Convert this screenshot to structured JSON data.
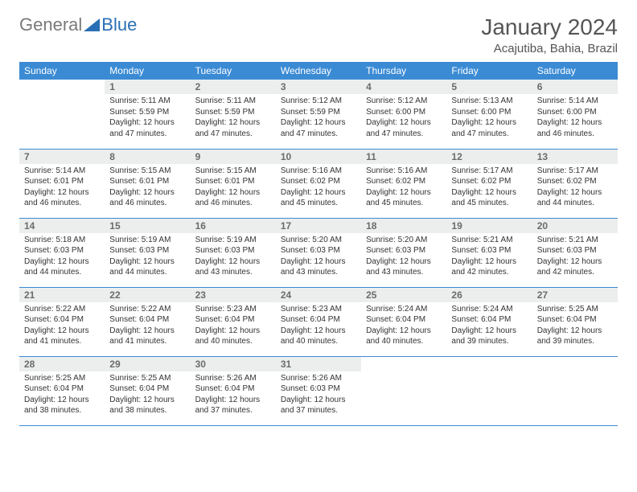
{
  "logo": {
    "gray": "General",
    "blue": "Blue"
  },
  "title": "January 2024",
  "location": "Acajutiba, Bahia, Brazil",
  "colors": {
    "header_bg": "#3b8bd4",
    "header_text": "#ffffff",
    "daynum_bg": "#eceeee",
    "daynum_text": "#6b6b6b",
    "row_border": "#3b8bd4",
    "body_text": "#333333",
    "logo_gray": "#7a7a7a",
    "logo_blue": "#2a6fb5"
  },
  "weekdays": [
    "Sunday",
    "Monday",
    "Tuesday",
    "Wednesday",
    "Thursday",
    "Friday",
    "Saturday"
  ],
  "grid": [
    [
      null,
      {
        "n": "1",
        "sr": "5:11 AM",
        "ss": "5:59 PM",
        "dl": "12 hours and 47 minutes."
      },
      {
        "n": "2",
        "sr": "5:11 AM",
        "ss": "5:59 PM",
        "dl": "12 hours and 47 minutes."
      },
      {
        "n": "3",
        "sr": "5:12 AM",
        "ss": "5:59 PM",
        "dl": "12 hours and 47 minutes."
      },
      {
        "n": "4",
        "sr": "5:12 AM",
        "ss": "6:00 PM",
        "dl": "12 hours and 47 minutes."
      },
      {
        "n": "5",
        "sr": "5:13 AM",
        "ss": "6:00 PM",
        "dl": "12 hours and 47 minutes."
      },
      {
        "n": "6",
        "sr": "5:14 AM",
        "ss": "6:00 PM",
        "dl": "12 hours and 46 minutes."
      }
    ],
    [
      {
        "n": "7",
        "sr": "5:14 AM",
        "ss": "6:01 PM",
        "dl": "12 hours and 46 minutes."
      },
      {
        "n": "8",
        "sr": "5:15 AM",
        "ss": "6:01 PM",
        "dl": "12 hours and 46 minutes."
      },
      {
        "n": "9",
        "sr": "5:15 AM",
        "ss": "6:01 PM",
        "dl": "12 hours and 46 minutes."
      },
      {
        "n": "10",
        "sr": "5:16 AM",
        "ss": "6:02 PM",
        "dl": "12 hours and 45 minutes."
      },
      {
        "n": "11",
        "sr": "5:16 AM",
        "ss": "6:02 PM",
        "dl": "12 hours and 45 minutes."
      },
      {
        "n": "12",
        "sr": "5:17 AM",
        "ss": "6:02 PM",
        "dl": "12 hours and 45 minutes."
      },
      {
        "n": "13",
        "sr": "5:17 AM",
        "ss": "6:02 PM",
        "dl": "12 hours and 44 minutes."
      }
    ],
    [
      {
        "n": "14",
        "sr": "5:18 AM",
        "ss": "6:03 PM",
        "dl": "12 hours and 44 minutes."
      },
      {
        "n": "15",
        "sr": "5:19 AM",
        "ss": "6:03 PM",
        "dl": "12 hours and 44 minutes."
      },
      {
        "n": "16",
        "sr": "5:19 AM",
        "ss": "6:03 PM",
        "dl": "12 hours and 43 minutes."
      },
      {
        "n": "17",
        "sr": "5:20 AM",
        "ss": "6:03 PM",
        "dl": "12 hours and 43 minutes."
      },
      {
        "n": "18",
        "sr": "5:20 AM",
        "ss": "6:03 PM",
        "dl": "12 hours and 43 minutes."
      },
      {
        "n": "19",
        "sr": "5:21 AM",
        "ss": "6:03 PM",
        "dl": "12 hours and 42 minutes."
      },
      {
        "n": "20",
        "sr": "5:21 AM",
        "ss": "6:03 PM",
        "dl": "12 hours and 42 minutes."
      }
    ],
    [
      {
        "n": "21",
        "sr": "5:22 AM",
        "ss": "6:04 PM",
        "dl": "12 hours and 41 minutes."
      },
      {
        "n": "22",
        "sr": "5:22 AM",
        "ss": "6:04 PM",
        "dl": "12 hours and 41 minutes."
      },
      {
        "n": "23",
        "sr": "5:23 AM",
        "ss": "6:04 PM",
        "dl": "12 hours and 40 minutes."
      },
      {
        "n": "24",
        "sr": "5:23 AM",
        "ss": "6:04 PM",
        "dl": "12 hours and 40 minutes."
      },
      {
        "n": "25",
        "sr": "5:24 AM",
        "ss": "6:04 PM",
        "dl": "12 hours and 40 minutes."
      },
      {
        "n": "26",
        "sr": "5:24 AM",
        "ss": "6:04 PM",
        "dl": "12 hours and 39 minutes."
      },
      {
        "n": "27",
        "sr": "5:25 AM",
        "ss": "6:04 PM",
        "dl": "12 hours and 39 minutes."
      }
    ],
    [
      {
        "n": "28",
        "sr": "5:25 AM",
        "ss": "6:04 PM",
        "dl": "12 hours and 38 minutes."
      },
      {
        "n": "29",
        "sr": "5:25 AM",
        "ss": "6:04 PM",
        "dl": "12 hours and 38 minutes."
      },
      {
        "n": "30",
        "sr": "5:26 AM",
        "ss": "6:04 PM",
        "dl": "12 hours and 37 minutes."
      },
      {
        "n": "31",
        "sr": "5:26 AM",
        "ss": "6:03 PM",
        "dl": "12 hours and 37 minutes."
      },
      null,
      null,
      null
    ]
  ],
  "labels": {
    "sunrise": "Sunrise:",
    "sunset": "Sunset:",
    "daylight": "Daylight:"
  }
}
